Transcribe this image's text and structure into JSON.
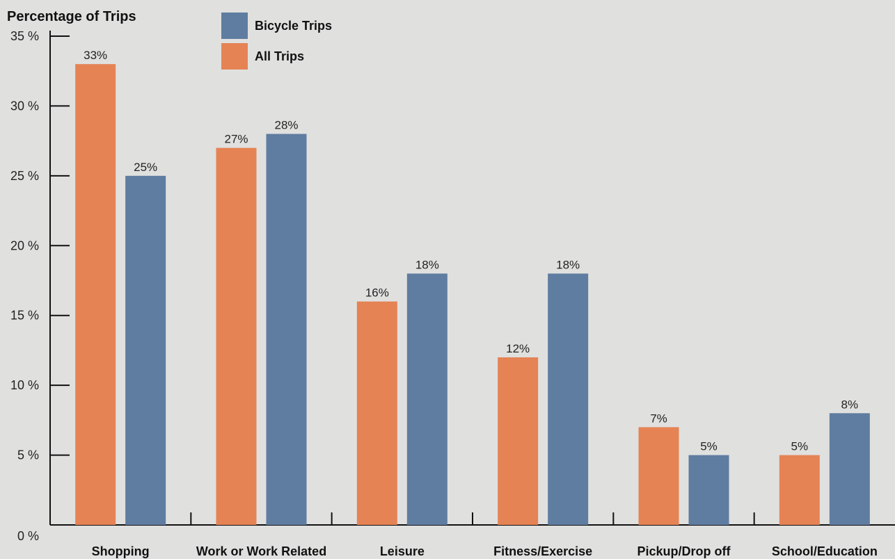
{
  "chart_data": {
    "type": "bar",
    "ylabel": "Percentage of Trips",
    "xlabel": "",
    "categories": [
      "Shopping",
      "Work or Work Related",
      "Leisure",
      "Fitness/Exercise",
      "Pickup/Drop off",
      "School/Education"
    ],
    "series": [
      {
        "name": "All Trips",
        "color": "#e58355",
        "values": [
          33,
          27,
          16,
          12,
          7,
          5
        ],
        "labels": [
          "33%",
          "27%",
          "16%",
          "12%",
          "7%",
          "5%"
        ]
      },
      {
        "name": "Bicycle Trips",
        "color": "#5f7da0",
        "values": [
          25,
          28,
          18,
          18,
          5,
          8
        ],
        "labels": [
          "25%",
          "28%",
          "18%",
          "18%",
          "5%",
          "8%"
        ]
      }
    ],
    "ylim": [
      0,
      35
    ],
    "yticks": [
      0,
      5,
      10,
      15,
      20,
      25,
      30,
      35
    ],
    "ytick_labels": [
      "0 %",
      "5 %",
      "10 %",
      "15 %",
      "20 %",
      "25 %",
      "30 %",
      "35 %"
    ],
    "legend": {
      "position": "top-left",
      "entries": [
        {
          "name": "Bicycle Trips",
          "color": "#5f7da0"
        },
        {
          "name": "All Trips",
          "color": "#e58355"
        }
      ]
    },
    "grid": false
  }
}
